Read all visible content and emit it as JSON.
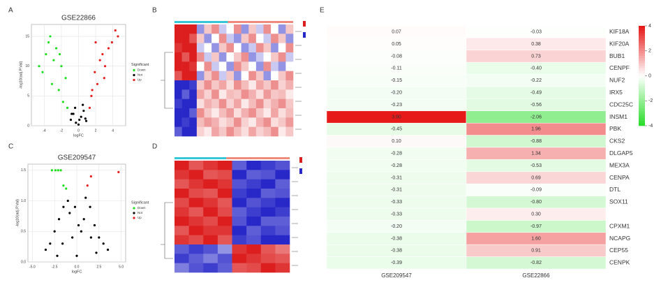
{
  "chart_data": [
    {
      "type": "scatter",
      "label": "A",
      "title": "GSE22866",
      "x_label": "logFC",
      "y_label": "-log10(adj.P.Val)",
      "legend_title": "Significant",
      "xlim": [
        -5.5,
        5.5
      ],
      "xticks": [
        -4,
        -2,
        0,
        2,
        4
      ],
      "ylim": [
        0,
        17
      ],
      "yticks": [
        0,
        5,
        10,
        15
      ],
      "grid": true,
      "series": [
        {
          "name": "Down",
          "color": "#1fe01f",
          "x": [
            -4.2,
            -3.8,
            -3.5,
            -3.1,
            -2.9,
            -2.6,
            -2.3,
            -2.0,
            -1.8,
            -1.5,
            -1.3,
            -3.3,
            -2.2,
            -4.6
          ],
          "y": [
            9,
            12,
            14,
            7,
            11,
            13,
            6,
            10,
            4,
            8,
            3,
            15,
            12,
            10
          ]
        },
        {
          "name": "Not",
          "color": "#000000",
          "x": [
            -0.9,
            -0.6,
            -0.3,
            0,
            0.3,
            0.6,
            0.9,
            -0.4,
            0.5,
            -0.8,
            0.8,
            0.1
          ],
          "y": [
            1,
            2,
            0.5,
            0.2,
            1.5,
            2.5,
            0.8,
            3,
            3.5,
            2,
            1.2,
            1
          ]
        },
        {
          "name": "Up",
          "color": "#e51e1e",
          "x": [
            1.3,
            1.6,
            1.9,
            2.2,
            2.5,
            2.8,
            3.1,
            3.5,
            3.9,
            4.3,
            2.0,
            3.0,
            1.5,
            4.6
          ],
          "y": [
            3,
            6,
            9,
            7,
            11,
            12,
            10,
            13,
            14,
            16,
            14,
            8,
            5,
            15
          ]
        }
      ]
    },
    {
      "type": "heatmap",
      "label": "B",
      "zlim": [
        -2,
        2
      ],
      "values": [
        [
          2,
          2,
          2,
          -1,
          0.5,
          1,
          -0.5,
          0,
          1,
          -1,
          0.5,
          -0.5,
          1,
          0,
          -1,
          0.5
        ],
        [
          2,
          2,
          1.5,
          0.5,
          -1,
          0,
          1,
          -0.5,
          -1,
          0.5,
          1,
          0,
          -0.5,
          1,
          0.5,
          -1
        ],
        [
          1.8,
          2,
          2,
          -0.5,
          0,
          -1,
          0.5,
          1,
          0,
          -1,
          -0.5,
          1,
          0.5,
          -1,
          0,
          1
        ],
        [
          2,
          1.5,
          2,
          1,
          -0.5,
          0.5,
          -1,
          0,
          0.5,
          1,
          -1,
          -0.5,
          0,
          0.5,
          1,
          -0.5
        ],
        [
          2,
          2,
          1.8,
          0,
          1,
          -0.5,
          0,
          -1,
          1,
          0.5,
          0,
          -1,
          1,
          -0.5,
          -1,
          0
        ],
        [
          1.5,
          2,
          2,
          -1,
          0.5,
          1,
          -0.5,
          0.5,
          -1,
          0,
          1,
          0.5,
          -1,
          0,
          0.5,
          1
        ],
        [
          -2,
          -2,
          -1.8,
          0.5,
          1,
          0.5,
          0.8,
          0.3,
          1,
          0.6,
          0.2,
          0.8,
          0.5,
          1,
          0.4,
          0.7
        ],
        [
          -2,
          -1.5,
          -2,
          0.8,
          0.4,
          1,
          0.2,
          0.6,
          0.5,
          1,
          0.7,
          0.3,
          0.9,
          0.5,
          0.6,
          0.2
        ],
        [
          -1.8,
          -2,
          -2,
          0.3,
          0.7,
          0.5,
          1,
          0.4,
          0.8,
          0.2,
          0.6,
          1,
          0.4,
          0.7,
          1,
          0.5
        ],
        [
          -2,
          -2,
          -1.5,
          1,
          0.5,
          0.2,
          0.6,
          0.9,
          0.3,
          0.7,
          1,
          0.5,
          0.2,
          0.8,
          0.3,
          0.6
        ],
        [
          -2,
          -1.8,
          -2,
          0.6,
          0.9,
          0.7,
          0.3,
          0.5,
          1,
          0.4,
          0.2,
          0.7,
          1,
          0.3,
          0.5,
          0.9
        ],
        [
          -1.5,
          -2,
          -2,
          0.4,
          0.2,
          0.8,
          0.5,
          1,
          0.6,
          0.3,
          0.8,
          0.4,
          0.6,
          1,
          0.2,
          0.5
        ]
      ]
    },
    {
      "type": "scatter",
      "label": "C",
      "title": "GSE209547",
      "x_label": "logFC",
      "y_label": "-log10(adj.P.Val)",
      "legend_title": "Significant",
      "xlim": [
        -5.5,
        5.5
      ],
      "xticks": [
        {
          "value": -5,
          "label": "-5.0"
        },
        {
          "value": -2.5,
          "label": "-2.5"
        },
        {
          "value": 0,
          "label": "0.0"
        },
        {
          "value": 2.5,
          "label": "2.5"
        },
        {
          "value": 5,
          "label": "5.0"
        }
      ],
      "ylim": [
        0,
        1.6
      ],
      "yticks": [
        {
          "value": 0,
          "label": "0.0"
        },
        0.5,
        {
          "value": 1,
          "label": "1.0"
        },
        1.5
      ],
      "grid": true,
      "series": [
        {
          "name": "Down",
          "color": "#1fe01f",
          "x": [
            -2.8,
            -2.4,
            -2.1,
            -1.8,
            -1.5,
            -1.2
          ],
          "y": [
            1.5,
            1.5,
            1.5,
            1.5,
            1.25,
            1.2
          ]
        },
        {
          "name": "Not",
          "color": "#000000",
          "x": [
            -3.5,
            -3,
            -2.5,
            -2,
            -1.5,
            -1,
            -0.5,
            0,
            0.5,
            1,
            1.5,
            2,
            2.5,
            3,
            3.5,
            -0.8,
            0.8,
            -1.6,
            1.6,
            0.2,
            -0.2,
            -2.2,
            2.2
          ],
          "y": [
            0.2,
            0.3,
            0.5,
            0.7,
            0.9,
            1.0,
            0.4,
            0.1,
            0.5,
            1.05,
            0.9,
            0.6,
            0.4,
            0.3,
            0.2,
            0.8,
            0.7,
            0.3,
            0.4,
            0.6,
            0.9,
            0.1,
            0.15
          ]
        },
        {
          "name": "Up",
          "color": "#e51e1e",
          "x": [
            1.2,
            1.6,
            4.7
          ],
          "y": [
            1.25,
            1.4,
            1.47
          ]
        }
      ]
    },
    {
      "type": "heatmap",
      "label": "D",
      "zlim": [
        -2,
        2
      ],
      "values": [
        [
          2,
          1.5,
          1.8,
          2,
          -1.5,
          -2,
          -1.8,
          -1.6
        ],
        [
          1.8,
          2,
          1.5,
          1.6,
          -2,
          -1.5,
          -1.6,
          -2
        ],
        [
          1.5,
          1.8,
          2,
          1.8,
          -1.6,
          -1.8,
          -2,
          -1.5
        ],
        [
          2,
          1.6,
          1.5,
          2,
          -1.8,
          -2,
          -1.5,
          -1.6
        ],
        [
          1.6,
          2,
          1.8,
          1.5,
          -2,
          -1.6,
          -1.8,
          -2
        ],
        [
          1.8,
          1.5,
          2,
          1.6,
          -1.5,
          -1.8,
          -2,
          -1.8
        ],
        [
          2,
          1.8,
          1.6,
          2,
          -1.6,
          -2,
          -1.5,
          -1.5
        ],
        [
          1.5,
          2,
          1.8,
          1.8,
          -2,
          -1.5,
          -1.8,
          -1.6
        ],
        [
          1.8,
          1.6,
          2,
          1.5,
          -1.8,
          -1.6,
          -2,
          -2
        ],
        [
          -1.5,
          -1.8,
          -1.6,
          -1,
          1.8,
          2,
          1.5,
          1.2
        ],
        [
          -1.8,
          -1.5,
          -1.2,
          -1.6,
          2,
          1.8,
          1.6,
          1.5
        ],
        [
          -1.2,
          -1.6,
          -1.8,
          -1.5,
          1.5,
          1.6,
          2,
          1.8
        ]
      ]
    },
    {
      "type": "heatmap",
      "label": "E",
      "zlim": [
        -4,
        4
      ],
      "zticks": [
        4,
        2,
        0,
        -2,
        -4
      ],
      "columns": [
        "GSE209547",
        "GSE22866"
      ],
      "rows": [
        "KIF18A",
        "KIF20A",
        "BUB1",
        "CENPF",
        "NUF2",
        "IRX5",
        "CDC25C",
        "INSM1",
        "PBK",
        "CKS2",
        "DLGAP5",
        "MEX3A",
        "CENPA",
        "DTL",
        "SOX11",
        null,
        "CPXM1",
        "NCAPG",
        "CEP55",
        "CENPK"
      ],
      "values": [
        [
          0.07,
          -0.03
        ],
        [
          0.05,
          0.38
        ],
        [
          -0.08,
          0.73
        ],
        [
          -0.11,
          -0.4
        ],
        [
          -0.15,
          -0.22
        ],
        [
          -0.2,
          -0.49
        ],
        [
          -0.23,
          -0.56
        ],
        [
          3.9,
          -2.06
        ],
        [
          -0.45,
          1.96
        ],
        [
          0.1,
          -0.88
        ],
        [
          -0.28,
          1.34
        ],
        [
          -0.28,
          -0.53
        ],
        [
          -0.31,
          0.69
        ],
        [
          -0.31,
          -0.09
        ],
        [
          -0.33,
          -0.8
        ],
        [
          -0.33,
          0.3
        ],
        [
          -0.2,
          -0.97
        ],
        [
          -0.38,
          1.6
        ],
        [
          -0.38,
          0.91
        ],
        [
          -0.39,
          -0.82
        ]
      ],
      "value_labels": [
        [
          "0.07",
          "-0.03"
        ],
        [
          "0.05",
          "0.38"
        ],
        [
          "-0.08",
          "0.73"
        ],
        [
          "-0.11",
          "-0.40"
        ],
        [
          "-0.15",
          "-0.22"
        ],
        [
          "-0.20",
          "-0.49"
        ],
        [
          "-0.23",
          "-0.56"
        ],
        [
          "3.90",
          "-2.06"
        ],
        [
          "-0.45",
          "1.96"
        ],
        [
          "0.10",
          "-0.88"
        ],
        [
          "-0.28",
          "1.34"
        ],
        [
          "-0.28",
          "-0.53"
        ],
        [
          "-0.31",
          "0.69"
        ],
        [
          "-0.31",
          "-0.09"
        ],
        [
          "-0.33",
          "-0.80"
        ],
        [
          "-0.33",
          "0.30"
        ],
        [
          "-0.20",
          "-0.97"
        ],
        [
          "-0.38",
          "1.60"
        ],
        [
          "-0.38",
          "0.91"
        ],
        [
          "-0.39",
          "-0.82"
        ]
      ]
    }
  ]
}
